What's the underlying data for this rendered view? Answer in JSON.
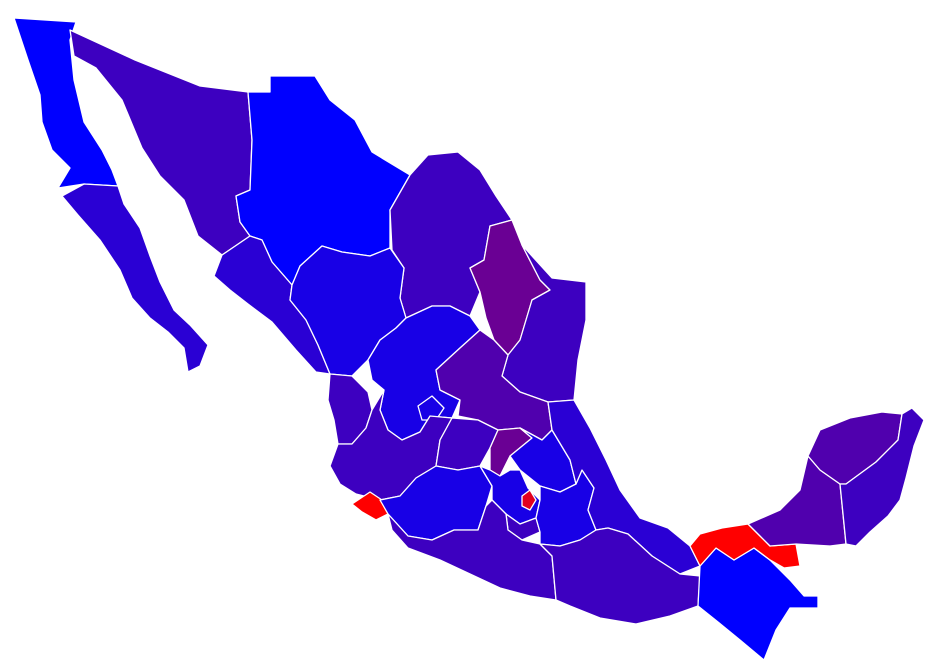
{
  "palette": {
    "deep_blue": "#0000ff",
    "blue": "#1800e6",
    "blue_violet": "#2a00d4",
    "indigo": "#3d00c0",
    "violet": "#5000ae",
    "purple": "#6a0094",
    "red": "#ff0000",
    "crimson": "#e0001f",
    "background": "#ffffff",
    "border": "#ffffff"
  },
  "states": [
    {
      "id": "baja-california",
      "fill": "#0000ff"
    },
    {
      "id": "baja-california-sur",
      "fill": "#2a00d4"
    },
    {
      "id": "sonora",
      "fill": "#3d00c0"
    },
    {
      "id": "chihuahua",
      "fill": "#0000ff"
    },
    {
      "id": "coahuila",
      "fill": "#3d00c0"
    },
    {
      "id": "nuevo-leon",
      "fill": "#6a0094"
    },
    {
      "id": "tamaulipas",
      "fill": "#3d00c0"
    },
    {
      "id": "sinaloa",
      "fill": "#2a00d4"
    },
    {
      "id": "durango",
      "fill": "#1800e6"
    },
    {
      "id": "zacatecas",
      "fill": "#1800e6"
    },
    {
      "id": "nayarit",
      "fill": "#3d00c0"
    },
    {
      "id": "aguascalientes",
      "fill": "#1800e6"
    },
    {
      "id": "san-luis-potosi",
      "fill": "#5000ae"
    },
    {
      "id": "jalisco",
      "fill": "#3d00c0"
    },
    {
      "id": "guanajuato",
      "fill": "#3d00c0"
    },
    {
      "id": "queretaro",
      "fill": "#6a0094"
    },
    {
      "id": "hidalgo",
      "fill": "#1800e6"
    },
    {
      "id": "colima",
      "fill": "#ff0000"
    },
    {
      "id": "michoacan",
      "fill": "#1800e6"
    },
    {
      "id": "mexico",
      "fill": "#1800e6"
    },
    {
      "id": "ciudad-de-mexico",
      "fill": "#e0001f"
    },
    {
      "id": "morelos",
      "fill": "#3d00c0"
    },
    {
      "id": "tlaxcala",
      "fill": "#3d00c0"
    },
    {
      "id": "puebla",
      "fill": "#1800e6"
    },
    {
      "id": "veracruz",
      "fill": "#2a00d4"
    },
    {
      "id": "guerrero",
      "fill": "#3d00c0"
    },
    {
      "id": "oaxaca",
      "fill": "#3d00c0"
    },
    {
      "id": "chiapas",
      "fill": "#0000ff"
    },
    {
      "id": "tabasco",
      "fill": "#ff0000"
    },
    {
      "id": "campeche",
      "fill": "#5000ae"
    },
    {
      "id": "yucatan",
      "fill": "#5000ae"
    },
    {
      "id": "quintana-roo",
      "fill": "#3d00c0"
    }
  ]
}
